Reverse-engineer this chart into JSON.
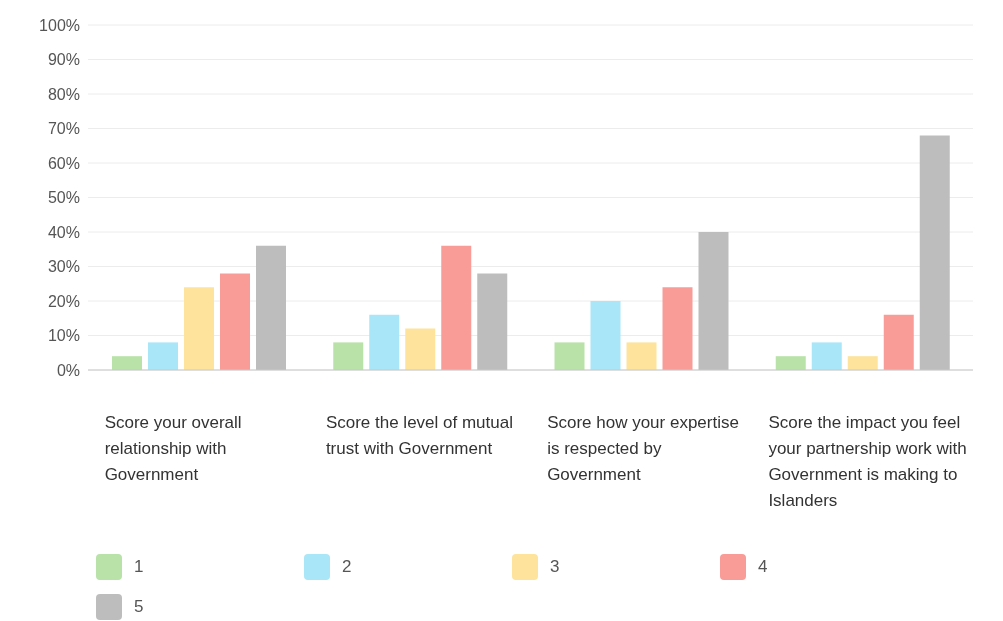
{
  "chart_data": {
    "type": "bar",
    "categories": [
      "Score your overall relationship with Government",
      "Score the level of mutual trust with Government",
      "Score how your expertise is respected by Government",
      "Score the impact you feel your partnership work with Government is making to Islanders"
    ],
    "series": [
      {
        "name": "1",
        "color": "#b8e2a8",
        "values": [
          4,
          8,
          8,
          4
        ]
      },
      {
        "name": "2",
        "color": "#a8e6f8",
        "values": [
          8,
          16,
          20,
          8
        ]
      },
      {
        "name": "3",
        "color": "#fde39c",
        "values": [
          24,
          12,
          8,
          4
        ]
      },
      {
        "name": "4",
        "color": "#f99b97",
        "values": [
          28,
          36,
          24,
          16
        ]
      },
      {
        "name": "5",
        "color": "#bdbdbd",
        "values": [
          36,
          28,
          40,
          68
        ]
      }
    ],
    "ylim": [
      0,
      100
    ],
    "yticks": [
      {
        "value": 0,
        "label": "0%"
      },
      {
        "value": 10,
        "label": "10%"
      },
      {
        "value": 20,
        "label": "20%"
      },
      {
        "value": 30,
        "label": "30%"
      },
      {
        "value": 40,
        "label": "40%"
      },
      {
        "value": 50,
        "label": "50%"
      },
      {
        "value": 60,
        "label": "60%"
      },
      {
        "value": 70,
        "label": "70%"
      },
      {
        "value": 80,
        "label": "80%"
      },
      {
        "value": 90,
        "label": "90%"
      },
      {
        "value": 100,
        "label": "100%"
      }
    ],
    "grid": "y",
    "legend": "bottom left"
  }
}
